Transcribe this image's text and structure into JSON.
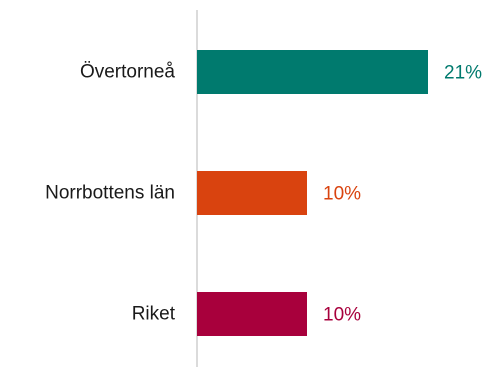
{
  "chart_data": {
    "type": "bar",
    "orientation": "horizontal",
    "categories": [
      "Övertorneå",
      "Norrbottens län",
      "Riket"
    ],
    "values": [
      21,
      10,
      10
    ],
    "value_labels": [
      "21%",
      "10%",
      "10%"
    ],
    "colors": [
      "#007A6E",
      "#D9430F",
      "#A8003C"
    ],
    "unit": "%",
    "xlim": [
      0,
      21
    ],
    "grid": false,
    "legend": "none",
    "title": "",
    "xlabel": "",
    "ylabel": ""
  }
}
